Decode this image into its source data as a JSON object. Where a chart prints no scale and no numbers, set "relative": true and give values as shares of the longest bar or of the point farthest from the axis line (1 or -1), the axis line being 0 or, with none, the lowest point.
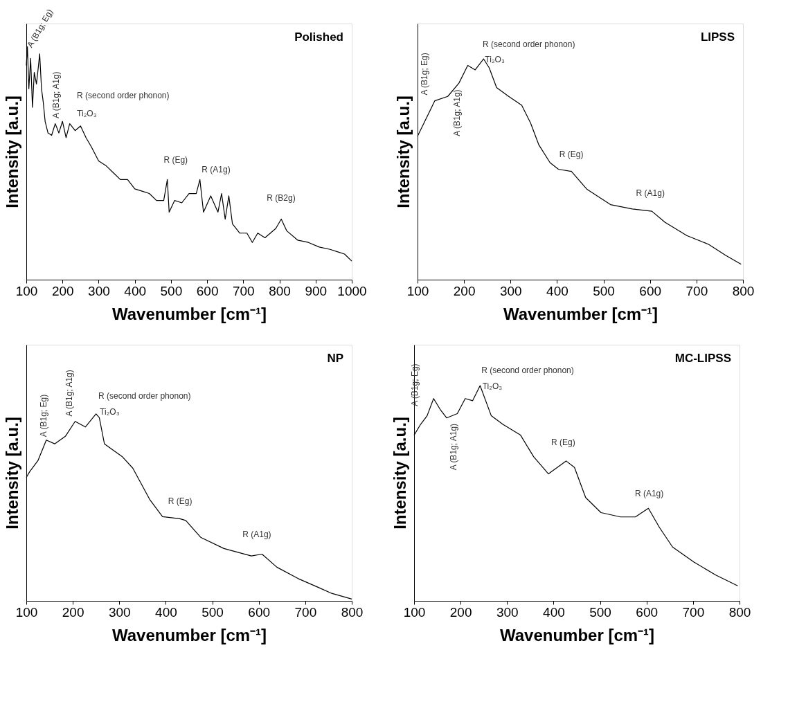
{
  "chart_data": [
    {
      "type": "line",
      "title": "Polished",
      "xlabel": "Wavenumber [cm⁻¹]",
      "ylabel": "Intensity [a.u.]",
      "relative": true,
      "tick_labels": "x",
      "color": "#000000",
      "xlim": [
        100,
        1000
      ],
      "xticks": [
        100,
        200,
        300,
        400,
        500,
        600,
        700,
        800,
        900,
        1000
      ],
      "x": [
        100,
        103,
        107,
        112,
        117,
        122,
        128,
        133,
        137,
        142,
        147,
        152,
        160,
        170,
        180,
        190,
        200,
        210,
        220,
        235,
        250,
        265,
        280,
        300,
        320,
        340,
        360,
        380,
        400,
        420,
        440,
        460,
        480,
        490,
        495,
        510,
        530,
        550,
        570,
        580,
        590,
        610,
        630,
        640,
        650,
        660,
        670,
        690,
        710,
        725,
        740,
        760,
        790,
        805,
        820,
        850,
        880,
        910,
        940,
        960,
        980,
        1000
      ],
      "values": [
        0.92,
        1.0,
        0.82,
        0.95,
        0.74,
        0.89,
        0.84,
        0.91,
        0.97,
        0.82,
        0.76,
        0.68,
        0.63,
        0.62,
        0.67,
        0.63,
        0.68,
        0.61,
        0.67,
        0.64,
        0.66,
        0.61,
        0.57,
        0.51,
        0.49,
        0.46,
        0.43,
        0.43,
        0.39,
        0.38,
        0.37,
        0.34,
        0.34,
        0.43,
        0.29,
        0.34,
        0.33,
        0.37,
        0.37,
        0.43,
        0.29,
        0.36,
        0.29,
        0.37,
        0.26,
        0.36,
        0.24,
        0.2,
        0.2,
        0.16,
        0.2,
        0.18,
        0.22,
        0.26,
        0.21,
        0.17,
        0.16,
        0.14,
        0.13,
        0.12,
        0.11,
        0.08
      ],
      "annotations": [
        "A (B1g; Eg)",
        "A (B1g; A1g)",
        "R (second order phonon)",
        "Ti₂O₃",
        "R (Eg)",
        "R (A1g)",
        "R (B2g)"
      ]
    },
    {
      "type": "line",
      "title": "LIPSS",
      "xlabel": "Wavenumber [cm⁻¹]",
      "ylabel": "Intensity [a.u.]",
      "relative": true,
      "tick_labels": "x",
      "color": "#000000",
      "xlim": [
        100,
        800
      ],
      "xticks": [
        100,
        200,
        300,
        400,
        500,
        600,
        700,
        800
      ],
      "x": [
        100,
        114,
        137,
        165,
        189,
        208,
        224,
        242,
        254,
        270,
        296,
        324,
        343,
        361,
        385,
        403,
        431,
        464,
        515,
        562,
        604,
        632,
        679,
        726,
        763,
        796
      ],
      "values": [
        0.65,
        0.71,
        0.81,
        0.83,
        0.89,
        0.97,
        0.95,
        1.0,
        0.96,
        0.87,
        0.83,
        0.79,
        0.71,
        0.61,
        0.53,
        0.5,
        0.49,
        0.41,
        0.34,
        0.32,
        0.31,
        0.26,
        0.2,
        0.16,
        0.11,
        0.07
      ],
      "annotations": [
        "A (B1g; Eg)",
        "A (B1g; A1g)",
        "R (second order phonon)",
        "Ti₂O₃",
        "R (Eg)",
        "R (A1g)"
      ]
    },
    {
      "type": "line",
      "title": "NP",
      "xlabel": "Wavenumber [cm⁻¹]",
      "ylabel": "Intensity [a.u.]",
      "relative": true,
      "tick_labels": "x",
      "color": "#000000",
      "xlim": [
        100,
        800
      ],
      "xticks": [
        100,
        200,
        300,
        400,
        500,
        600,
        700,
        800
      ],
      "x": [
        100,
        107,
        125,
        143,
        161,
        184,
        205,
        227,
        250,
        257,
        268,
        307,
        329,
        366,
        393,
        429,
        443,
        475,
        525,
        584,
        607,
        639,
        684,
        730,
        757,
        800
      ],
      "values": [
        0.66,
        0.69,
        0.75,
        0.86,
        0.84,
        0.88,
        0.96,
        0.93,
        1.0,
        0.98,
        0.84,
        0.77,
        0.71,
        0.54,
        0.45,
        0.44,
        0.43,
        0.34,
        0.28,
        0.24,
        0.25,
        0.18,
        0.12,
        0.07,
        0.04,
        0.01
      ],
      "annotations": [
        "A (B1g; Eg)",
        "A (B1g; A1g)",
        "R (second order phonon)",
        "Ti₂O₃",
        "R (Eg)",
        "R (A1g)"
      ]
    },
    {
      "type": "line",
      "title": "MC-LIPSS",
      "xlabel": "Wavenumber [cm⁻¹]",
      "ylabel": "Intensity [a.u.]",
      "relative": true,
      "tick_labels": "x",
      "color": "#000000",
      "xlim": [
        100,
        800
      ],
      "xticks": [
        100,
        200,
        300,
        400,
        500,
        600,
        700,
        800
      ],
      "x": [
        100,
        114,
        128,
        142,
        156,
        170,
        193,
        210,
        226,
        242,
        266,
        291,
        329,
        357,
        389,
        427,
        445,
        469,
        502,
        544,
        576,
        604,
        628,
        656,
        702,
        749,
        796
      ],
      "values": [
        0.77,
        0.82,
        0.86,
        0.94,
        0.89,
        0.85,
        0.87,
        0.94,
        0.93,
        1.0,
        0.86,
        0.82,
        0.77,
        0.67,
        0.59,
        0.65,
        0.62,
        0.48,
        0.41,
        0.39,
        0.39,
        0.43,
        0.34,
        0.25,
        0.18,
        0.12,
        0.07
      ],
      "annotations": [
        "A (B1g; Eg)",
        "A (B1g; A1g)",
        "R (second order phonon)",
        "Ti₂O₃",
        "R (Eg)",
        "R (A1g)"
      ]
    }
  ]
}
